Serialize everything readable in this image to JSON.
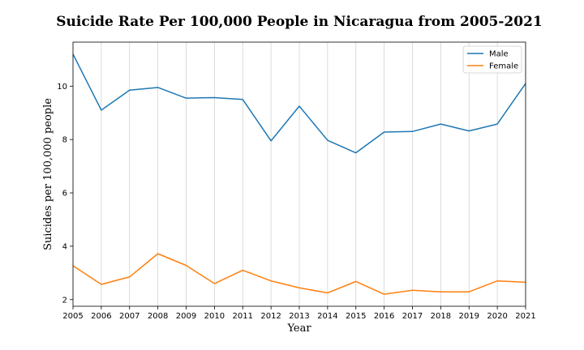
{
  "chart_data": {
    "type": "line",
    "title": "Suicide Rate Per 100,000 People in Nicaragua from 2005-2021",
    "xlabel": "Year",
    "ylabel": "Suicides per 100,000 people",
    "x": [
      2005,
      2006,
      2007,
      2008,
      2009,
      2010,
      2011,
      2012,
      2013,
      2014,
      2015,
      2016,
      2017,
      2018,
      2019,
      2020,
      2021
    ],
    "xlim": [
      2005,
      2021
    ],
    "ylim": [
      1.75,
      11.65
    ],
    "yticks": [
      2,
      4,
      6,
      8,
      10
    ],
    "grid": "vertical",
    "legend_position": "top-right",
    "series": [
      {
        "name": "Male",
        "color": "#1f77b4",
        "values": [
          11.2,
          9.1,
          9.85,
          9.95,
          9.55,
          9.57,
          9.5,
          7.95,
          9.25,
          7.97,
          7.5,
          8.28,
          8.3,
          8.58,
          8.32,
          8.58,
          10.1
        ]
      },
      {
        "name": "Female",
        "color": "#ff7f0e",
        "values": [
          3.27,
          2.57,
          2.85,
          3.72,
          3.28,
          2.6,
          3.1,
          2.7,
          2.44,
          2.25,
          2.68,
          2.2,
          2.35,
          2.29,
          2.29,
          2.7,
          2.65
        ]
      }
    ]
  }
}
